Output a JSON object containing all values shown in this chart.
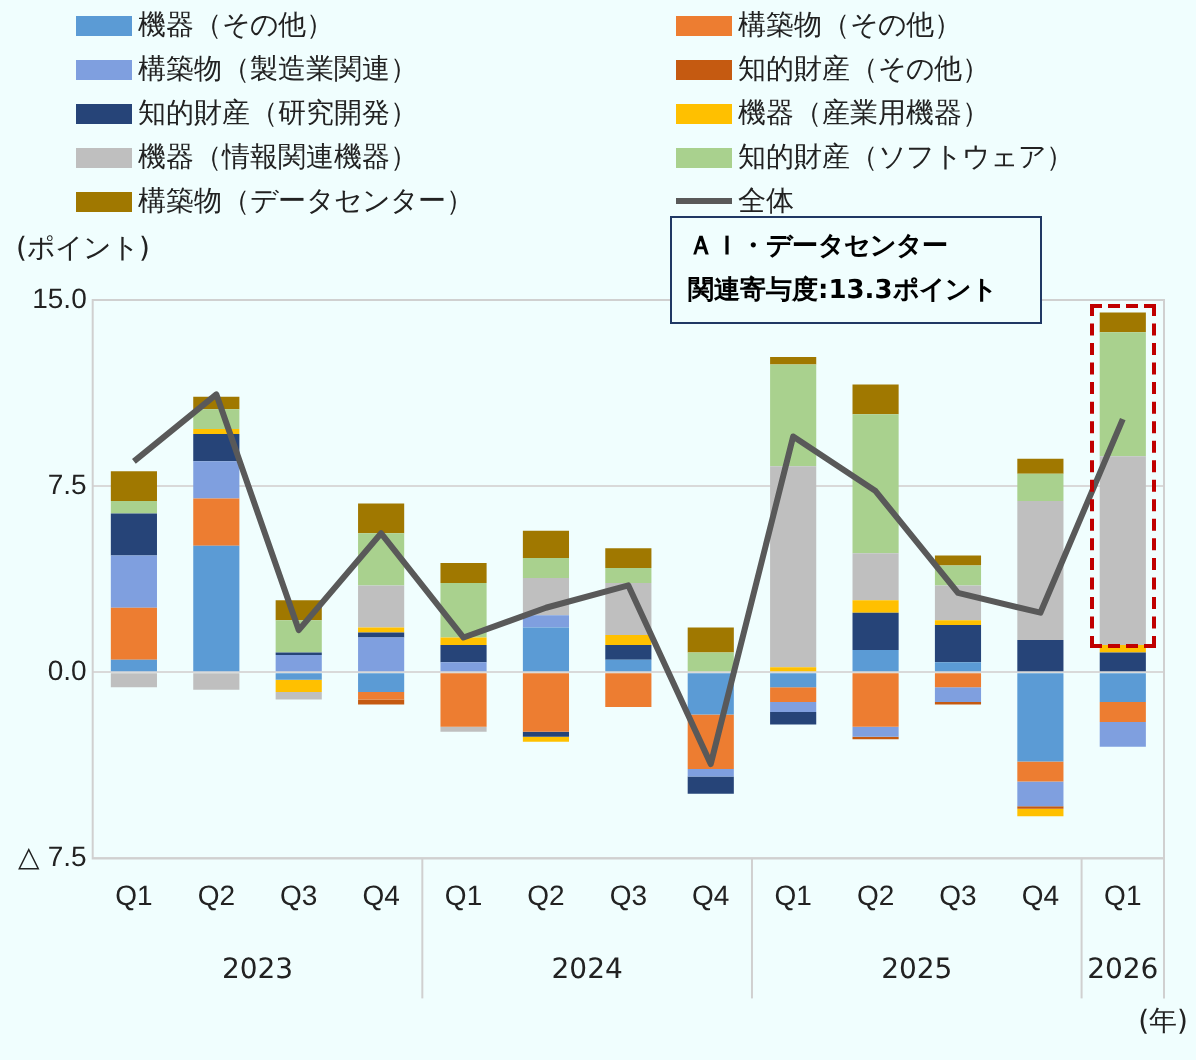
{
  "chart_data": {
    "type": "bar",
    "stacked": true,
    "ylabel": "(ポイント)",
    "legend": "top",
    "grid": "y",
    "marker": "none",
    "categories": [
      "Q1",
      "Q2",
      "Q3",
      "Q4",
      "Q1",
      "Q2",
      "Q3",
      "Q4",
      "Q1",
      "Q2",
      "Q3",
      "Q4",
      "Q1"
    ],
    "ylim": [
      -7.5,
      15
    ],
    "yticks": [
      {
        "value": -7.5,
        "label": "△ 7.5"
      },
      {
        "value": 0,
        "label": "0.0"
      },
      {
        "value": 7.5,
        "label": "7.5"
      },
      {
        "value": 15,
        "label": "15.0"
      }
    ],
    "series": [
      {
        "name": "機器（その他）",
        "color": "#5b9bd5",
        "values": [
          0.5,
          5.1,
          -0.3,
          -0.8,
          0,
          1.8,
          0.5,
          -1.7,
          -0.6,
          0.9,
          0.4,
          -3.6,
          -1.2
        ]
      },
      {
        "name": "構築物（その他）",
        "color": "#ed7d31",
        "values": [
          2.1,
          1.9,
          0,
          -0.3,
          -2.2,
          -2.4,
          -1.4,
          -2.2,
          -0.6,
          -2.2,
          -0.6,
          -0.8,
          -0.8
        ]
      },
      {
        "name": "構築物（製造業関連）",
        "color": "#7f9fdf",
        "values": [
          2.1,
          1.5,
          0.7,
          1.4,
          0.4,
          0.5,
          0,
          -0.3,
          -0.4,
          -0.4,
          -0.6,
          -1.0,
          -1.0
        ]
      },
      {
        "name": "知的財産（その他）",
        "color": "#c55a11",
        "values": [
          0,
          0,
          0,
          -0.2,
          0,
          0,
          0,
          0,
          0,
          -0.1,
          -0.1,
          -0.1,
          0
        ]
      },
      {
        "name": "知的財産（研究開発）",
        "color": "#264478",
        "values": [
          1.7,
          1.1,
          0.1,
          0.2,
          0.7,
          -0.2,
          0.6,
          -0.7,
          -0.5,
          1.5,
          1.5,
          1.3,
          0.8
        ]
      },
      {
        "name": "機器（産業用機器）",
        "color": "#ffc000",
        "values": [
          0,
          0.2,
          -0.5,
          0.2,
          0.3,
          -0.2,
          0.4,
          0,
          0.2,
          0.5,
          0.2,
          -0.3,
          0.3
        ]
      },
      {
        "name": "機器（情報関連機器）",
        "color": "#bfbfbf",
        "values": [
          -0.6,
          -0.7,
          -0.3,
          1.7,
          -0.2,
          1.5,
          2.1,
          0,
          8.1,
          1.9,
          1.4,
          5.6,
          7.6
        ]
      },
      {
        "name": "知的財産（ソフトウェア）",
        "color": "#a9d18e",
        "values": [
          0.5,
          0.8,
          1.3,
          2.1,
          2.2,
          0.8,
          0.6,
          0.8,
          4.1,
          5.6,
          0.8,
          1.1,
          5.0
        ]
      },
      {
        "name": "構築物（データセンター）",
        "color": "#a07800",
        "values": [
          1.2,
          0.5,
          0.8,
          1.2,
          0.8,
          1.1,
          0.8,
          1.0,
          0.3,
          1.2,
          0.4,
          0.6,
          0.8
        ]
      },
      {
        "name": "全体",
        "type": "line",
        "color": "#595959",
        "values": [
          8.5,
          11.2,
          1.7,
          5.6,
          1.4,
          2.6,
          3.5,
          -3.7,
          9.5,
          7.3,
          3.2,
          2.4,
          10.2
        ]
      }
    ],
    "annotations": [
      "2023",
      "2024",
      "2025",
      "2026",
      "(年)",
      "ＡＩ・データセンター",
      "関連寄与度:13.3ポイント"
    ]
  }
}
